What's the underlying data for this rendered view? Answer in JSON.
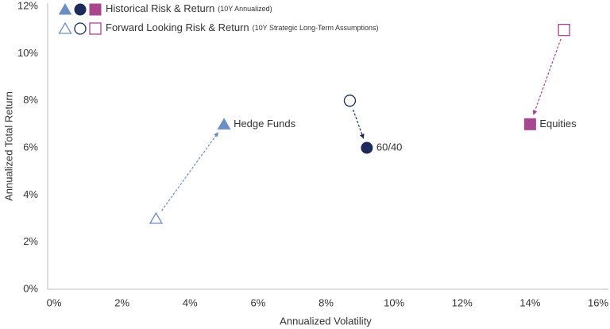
{
  "chart_data": {
    "type": "scatter",
    "xlabel": "Annualized Volatility",
    "ylabel": "Annualized Total Return",
    "categories": [
      "Hedge Funds",
      "60/40",
      "Equities"
    ],
    "shapes": [
      "triangle",
      "circle",
      "square"
    ],
    "colors": [
      "#6b8fc4",
      "#1d2a5c",
      "#a8468f"
    ],
    "series": [
      {
        "name": "Historical Risk & Return",
        "name_note": "(10Y Annualized)",
        "filled": true,
        "x": [
          5,
          9.2,
          14
        ],
        "values": [
          7,
          6,
          7
        ]
      },
      {
        "name": "Forward Looking Risk & Return",
        "name_note": "(10Y Strategic Long-Term Assumptions)",
        "filled": false,
        "x": [
          3,
          8.7,
          15
        ],
        "values": [
          3,
          8,
          11
        ]
      }
    ],
    "xlim": [
      0,
      16
    ],
    "xticks": [
      {
        "value": 0,
        "label": "0%"
      },
      {
        "value": 2,
        "label": "2%"
      },
      {
        "value": 4,
        "label": "4%"
      },
      {
        "value": 6,
        "label": "6%"
      },
      {
        "value": 8,
        "label": "8%"
      },
      {
        "value": 10,
        "label": "10%"
      },
      {
        "value": 12,
        "label": "12%"
      },
      {
        "value": 14,
        "label": "14%"
      },
      {
        "value": 16,
        "label": "16%"
      }
    ],
    "ylim": [
      0,
      12
    ],
    "yticks": [
      {
        "value": 0,
        "label": "0%"
      },
      {
        "value": 2,
        "label": "2%"
      },
      {
        "value": 4,
        "label": "4%"
      },
      {
        "value": 6,
        "label": "6%"
      },
      {
        "value": 8,
        "label": "8%"
      },
      {
        "value": 10,
        "label": "10%"
      },
      {
        "value": 12,
        "label": "12%"
      }
    ]
  }
}
